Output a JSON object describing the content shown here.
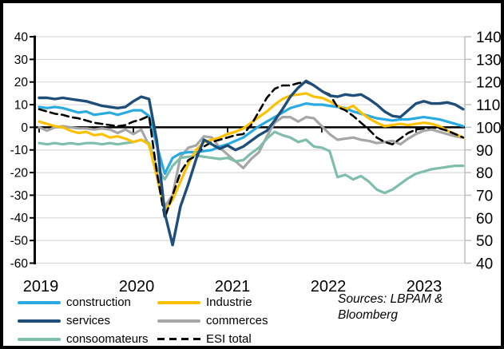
{
  "chart_data": {
    "type": "line",
    "title": "",
    "x_start": "2019-01",
    "x_end": "2023-07",
    "points_per_series": 55,
    "x_tick_labels": [
      "2019",
      "2020",
      "2021",
      "2022",
      "2023"
    ],
    "left_axis": {
      "min": -60,
      "max": 40,
      "step": 10,
      "tick_labels": [
        "40",
        "30",
        "20",
        "10",
        "0",
        "-10",
        "-20",
        "-30",
        "-40",
        "-50",
        "-60"
      ]
    },
    "right_axis": {
      "min": 40,
      "max": 140,
      "step": 10,
      "tick_labels": [
        "140",
        "130",
        "120",
        "110",
        "100",
        "90",
        "80",
        "70",
        "60",
        "50",
        "40"
      ]
    },
    "grid": "horizontal",
    "gridline_color": "#d9d9d9",
    "zero_line_color": "#000000",
    "right_axis_color": "#bfbfbf",
    "legend_position": "bottom",
    "series": [
      {
        "name": "commerces",
        "color": "#a6a6a6",
        "dash": false,
        "width": 3.2,
        "values": [
          0,
          -1.5,
          0,
          0.5,
          0,
          -0.5,
          -0.5,
          -1,
          -0.5,
          -1,
          -2.5,
          -1,
          -3,
          -1,
          -8,
          -20,
          -35,
          -30,
          -13,
          -9,
          -8,
          -4,
          -4.5,
          -9,
          -12,
          -15,
          -18,
          -14,
          -11,
          -4,
          2,
          4.5,
          4.5,
          2.5,
          4.5,
          4,
          0.5,
          -3,
          -5.5,
          -5,
          -4.5,
          -5.5,
          -6,
          -7,
          -6.5,
          -6,
          -7.5,
          -5,
          -3,
          -1.5,
          -1,
          -2,
          -3,
          -4,
          -4.5
        ]
      },
      {
        "name": "consoomateurs",
        "color": "#7ebeaa",
        "dash": false,
        "width": 3.2,
        "values": [
          -7,
          -7.5,
          -7,
          -7.5,
          -7,
          -7.5,
          -7,
          -7,
          -7.5,
          -7,
          -7.5,
          -7,
          -6.5,
          -5.5,
          -7,
          -18,
          -23,
          -17,
          -13.5,
          -13,
          -12.5,
          -13,
          -13.5,
          -14,
          -13.5,
          -15,
          -14.5,
          -11.5,
          -9,
          -5,
          -2,
          -3.5,
          -4.5,
          -6.5,
          -5.5,
          -8.5,
          -9,
          -10.5,
          -22,
          -21,
          -23,
          -21.5,
          -24,
          -27.5,
          -29,
          -27.5,
          -25,
          -22.5,
          -20.5,
          -19.5,
          -18.5,
          -18,
          -17.5,
          -17,
          -17
        ]
      },
      {
        "name": "construction",
        "color": "#29abe2",
        "dash": false,
        "width": 3.2,
        "values": [
          9,
          8.5,
          9,
          8.5,
          7.5,
          6.5,
          7,
          5.5,
          6,
          6.5,
          5.5,
          6.5,
          7.5,
          7.5,
          5,
          -8,
          -20.5,
          -13.5,
          -11.5,
          -11,
          -11,
          -10.5,
          -10,
          -8.5,
          -7.5,
          -6,
          -4.5,
          -2,
          0.5,
          2.5,
          4.5,
          6.5,
          8.5,
          9.5,
          10.5,
          10,
          10,
          9.5,
          9,
          8.5,
          7,
          6,
          5,
          4,
          3.5,
          3,
          3.5,
          3.5,
          4,
          4.5,
          4,
          3.5,
          2.5,
          1.5,
          0.5
        ]
      },
      {
        "name": "Industrie",
        "color": "#ffc000",
        "dash": false,
        "width": 3.2,
        "values": [
          2.5,
          1.5,
          0.5,
          0,
          -1.5,
          -2.5,
          -2,
          -3.5,
          -3,
          -4.5,
          -4,
          -5,
          -6.5,
          -5.5,
          -7.5,
          -22,
          -37,
          -32,
          -24,
          -16,
          -10,
          -6.5,
          -5.5,
          -4.5,
          -3,
          -2,
          -0.5,
          2,
          4.5,
          7,
          10,
          12.5,
          14,
          14.5,
          15,
          13.5,
          13,
          11.5,
          9.5,
          8,
          9.5,
          6.5,
          4,
          2,
          0.5,
          1,
          1.5,
          1,
          1.5,
          2,
          1.5,
          0.5,
          -1.5,
          -3,
          -4.5
        ]
      },
      {
        "name": "ESI total",
        "color": "#000000",
        "dash": true,
        "width": 2.6,
        "values": [
          8,
          7,
          6,
          5.5,
          4.5,
          4,
          3,
          2,
          1.5,
          1,
          0.5,
          1,
          2.5,
          3.5,
          5,
          -20,
          -40,
          -30,
          -20,
          -14.5,
          -12.5,
          -8.5,
          -6.5,
          -5.5,
          -4.5,
          -3.5,
          -3,
          1,
          7,
          13,
          17,
          18.5,
          18.5,
          19.5,
          20,
          18.5,
          16,
          14.5,
          9,
          7.5,
          5,
          2,
          -1,
          -4.5,
          -6.5,
          -7.5,
          -5,
          -2.5,
          -1,
          -0.5,
          0,
          -0.5,
          -1.5,
          -3,
          -4.5
        ]
      },
      {
        "name": "services",
        "color": "#1f4e79",
        "dash": false,
        "width": 3.4,
        "values": [
          13,
          13,
          12.5,
          13,
          12.5,
          12,
          11.5,
          10.5,
          9.5,
          9,
          8.5,
          9,
          11.5,
          13.5,
          12.5,
          -6,
          -38,
          -52,
          -35,
          -25,
          -14,
          -5.5,
          -7.5,
          -9.5,
          -8,
          -10,
          -8.5,
          -6,
          -3.5,
          -1.5,
          3,
          8,
          13.5,
          17.5,
          20.5,
          18.5,
          16,
          14,
          13.5,
          14.5,
          14,
          14.5,
          12.5,
          10,
          7,
          5,
          4.5,
          7.5,
          10.5,
          11.5,
          10.5,
          10.5,
          11,
          10,
          8
        ]
      }
    ]
  },
  "legend": {
    "items": [
      {
        "series_index": 2
      },
      {
        "series_index": 5
      },
      {
        "series_index": 1
      },
      {
        "series_index": 3
      },
      {
        "series_index": 0
      },
      {
        "series_index": 4
      }
    ]
  },
  "sources": {
    "line1": "Sources: LBPAM &",
    "line2": "Bloomberg"
  }
}
